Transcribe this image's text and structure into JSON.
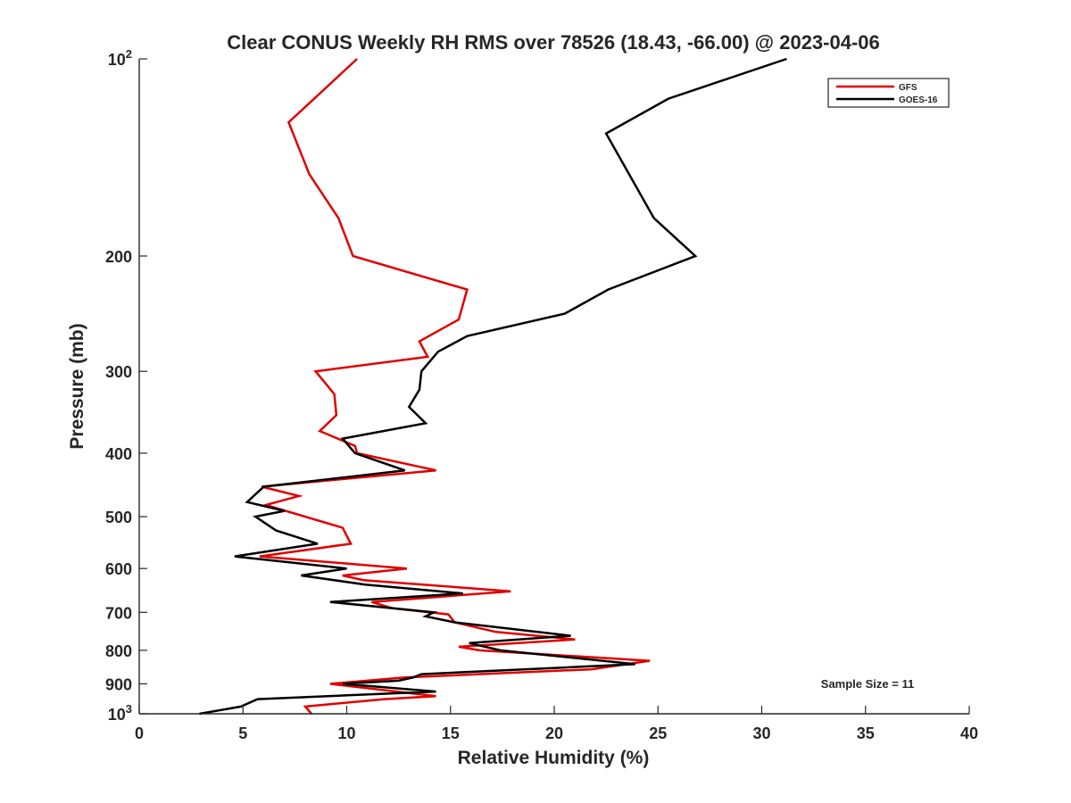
{
  "chart_data": {
    "type": "line",
    "title": "Clear CONUS Weekly RH RMS over 78526 (18.43, -66.00) @ 2023-04-06",
    "xlabel": "Relative Humidity (%)",
    "ylabel": "Pressure (mb)",
    "xlim": [
      0,
      40
    ],
    "ylim": [
      100,
      1000
    ],
    "yscale": "log",
    "y_reversed": true,
    "grid": false,
    "legend_position": "top-right",
    "xticks": [
      0,
      5,
      10,
      15,
      20,
      25,
      30,
      35,
      40
    ],
    "xtick_labels": [
      "0",
      "5",
      "10",
      "15",
      "20",
      "25",
      "30",
      "35",
      "40"
    ],
    "yticks": [
      100,
      200,
      300,
      400,
      500,
      600,
      700,
      800,
      900,
      1000
    ],
    "ytick_labels": [
      {
        "base": "10",
        "exp": "2"
      },
      {
        "base": "200",
        "exp": ""
      },
      {
        "base": "300",
        "exp": ""
      },
      {
        "base": "400",
        "exp": ""
      },
      {
        "base": "500",
        "exp": ""
      },
      {
        "base": "600",
        "exp": ""
      },
      {
        "base": "700",
        "exp": ""
      },
      {
        "base": "800",
        "exp": ""
      },
      {
        "base": "900",
        "exp": ""
      },
      {
        "base": "10",
        "exp": "3"
      }
    ],
    "annotation": "Sample Size = 11",
    "series": [
      {
        "name": "GFS",
        "color": "#e00000",
        "points": [
          [
            10.5,
            100
          ],
          [
            7.2,
            125
          ],
          [
            8.2,
            150
          ],
          [
            9.6,
            175
          ],
          [
            10.3,
            200
          ],
          [
            15.8,
            225
          ],
          [
            15.4,
            250
          ],
          [
            13.5,
            270
          ],
          [
            13.9,
            285
          ],
          [
            8.5,
            300
          ],
          [
            9.4,
            325
          ],
          [
            9.5,
            350
          ],
          [
            8.7,
            370
          ],
          [
            10.4,
            390
          ],
          [
            10.5,
            400
          ],
          [
            14.3,
            425
          ],
          [
            5.9,
            450
          ],
          [
            7.7,
            465
          ],
          [
            6.1,
            480
          ],
          [
            9.8,
            520
          ],
          [
            10.2,
            550
          ],
          [
            5.8,
            575
          ],
          [
            12.9,
            600
          ],
          [
            9.8,
            615
          ],
          [
            10.8,
            625
          ],
          [
            17.9,
            650
          ],
          [
            11.2,
            675
          ],
          [
            12.2,
            690
          ],
          [
            14.9,
            705
          ],
          [
            15.2,
            725
          ],
          [
            17.2,
            750
          ],
          [
            21.0,
            770
          ],
          [
            15.4,
            790
          ],
          [
            16.4,
            800
          ],
          [
            24.6,
            830
          ],
          [
            21.8,
            855
          ],
          [
            12.8,
            880
          ],
          [
            9.2,
            900
          ],
          [
            12.4,
            925
          ],
          [
            14.3,
            940
          ],
          [
            11.8,
            950
          ],
          [
            8.0,
            975
          ],
          [
            8.3,
            1000
          ]
        ]
      },
      {
        "name": "GOES-16",
        "color": "#000000",
        "points": [
          [
            31.2,
            100
          ],
          [
            25.5,
            115
          ],
          [
            22.5,
            130
          ],
          [
            24.8,
            175
          ],
          [
            26.8,
            200
          ],
          [
            22.6,
            225
          ],
          [
            20.5,
            245
          ],
          [
            15.8,
            265
          ],
          [
            14.4,
            280
          ],
          [
            13.6,
            300
          ],
          [
            13.5,
            320
          ],
          [
            13.0,
            340
          ],
          [
            13.8,
            360
          ],
          [
            9.8,
            380
          ],
          [
            10.4,
            400
          ],
          [
            12.8,
            425
          ],
          [
            6.0,
            450
          ],
          [
            5.2,
            475
          ],
          [
            7.0,
            490
          ],
          [
            5.6,
            500
          ],
          [
            6.6,
            525
          ],
          [
            8.6,
            550
          ],
          [
            4.6,
            575
          ],
          [
            10.0,
            600
          ],
          [
            7.8,
            615
          ],
          [
            10.9,
            635
          ],
          [
            15.6,
            655
          ],
          [
            9.2,
            675
          ],
          [
            14.2,
            700
          ],
          [
            13.8,
            710
          ],
          [
            15.2,
            725
          ],
          [
            20.8,
            760
          ],
          [
            15.9,
            780
          ],
          [
            17.4,
            800
          ],
          [
            23.9,
            840
          ],
          [
            13.6,
            870
          ],
          [
            13.2,
            880
          ],
          [
            12.5,
            890
          ],
          [
            9.8,
            900
          ],
          [
            14.3,
            925
          ],
          [
            5.7,
            950
          ],
          [
            4.9,
            975
          ],
          [
            2.9,
            1000
          ]
        ]
      }
    ]
  }
}
